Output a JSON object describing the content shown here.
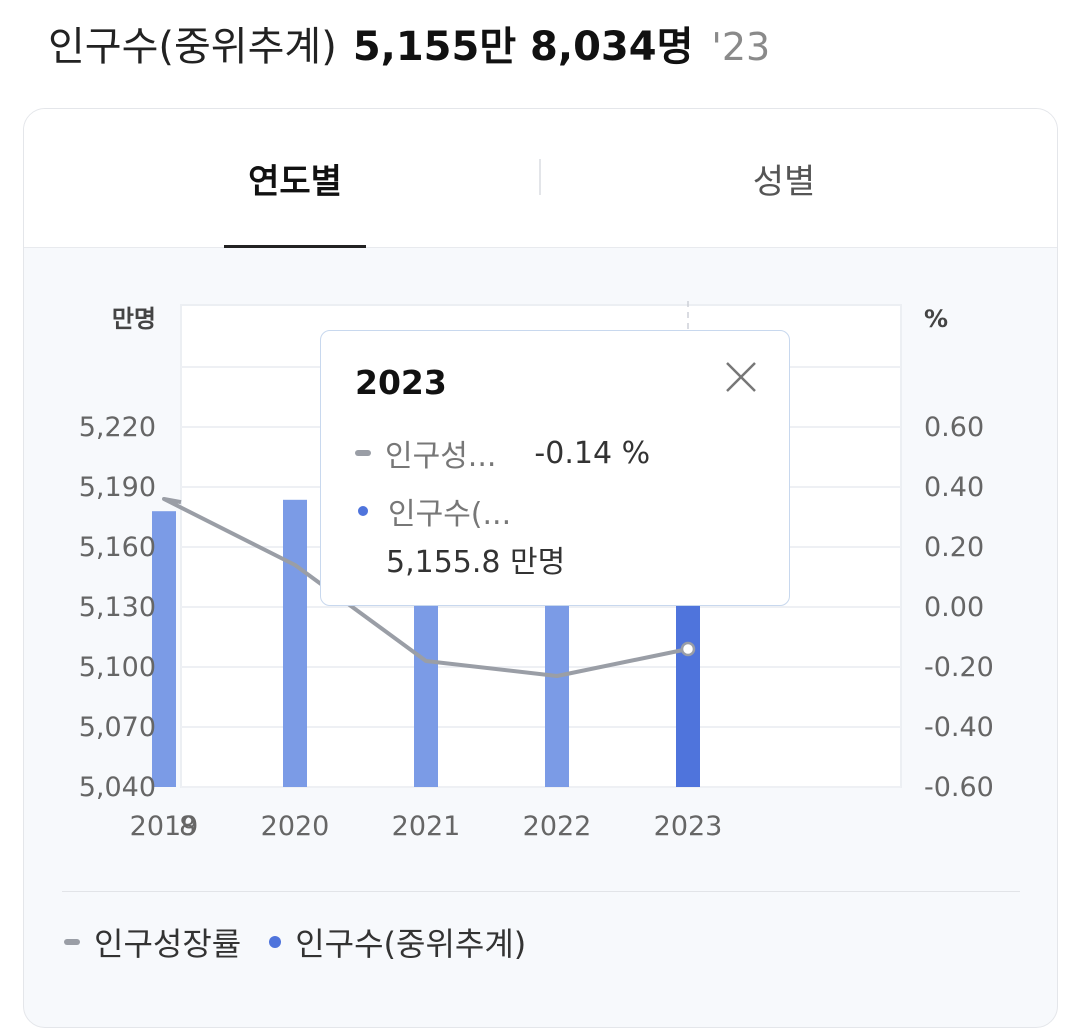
{
  "header": {
    "label": "인구수(중위추계)",
    "value": "5,155만 8,034명",
    "year": "'23"
  },
  "tabs": [
    {
      "label": "연도별",
      "active": true
    },
    {
      "label": "성별",
      "active": false
    }
  ],
  "chart_data": {
    "type": "bar",
    "categories": [
      "2018",
      "2019",
      "2020",
      "2021",
      "2022",
      "2023"
    ],
    "visible_category_labels": [
      "8",
      "2019",
      "2020",
      "2021",
      "2022",
      "2023"
    ],
    "series": [
      {
        "name": "인구수(중위추계)",
        "type": "bar",
        "axis": "left",
        "values": [
          null,
          5177.9,
          5183.6,
          5174.5,
          5162.8,
          5155.8
        ],
        "color": "#7b9be6",
        "highlight_color": "#4f74dc"
      },
      {
        "name": "인구성장률",
        "type": "line",
        "axis": "right",
        "values": [
          0.44,
          0.36,
          0.14,
          -0.18,
          -0.23,
          -0.14
        ],
        "color": "#9a9ea6"
      }
    ],
    "y_left": {
      "unit": "만명",
      "ticks": [
        "5,040",
        "5,070",
        "5,100",
        "5,130",
        "5,160",
        "5,190",
        "5,220"
      ],
      "range": [
        5040,
        5220
      ]
    },
    "y_right": {
      "unit": "%",
      "ticks": [
        "-0.60",
        "-0.40",
        "-0.20",
        "0.00",
        "0.20",
        "0.40",
        "0.60"
      ],
      "range": [
        -0.6,
        0.6
      ]
    },
    "legend": [
      "인구성장률",
      "인구수(중위추계)"
    ],
    "legend_position": "bottom",
    "highlighted_category": "2023",
    "grid": true
  },
  "tooltip": {
    "year": "2023",
    "growth_label": "인구성...",
    "growth_value": "-0.14 %",
    "pop_label": "인구수(...",
    "pop_value": "5,155.8 만명"
  },
  "colors": {
    "bar": "#7b9be6",
    "bar_active": "#4f74dc",
    "line": "#9a9ea6",
    "grid": "#eceff3"
  }
}
